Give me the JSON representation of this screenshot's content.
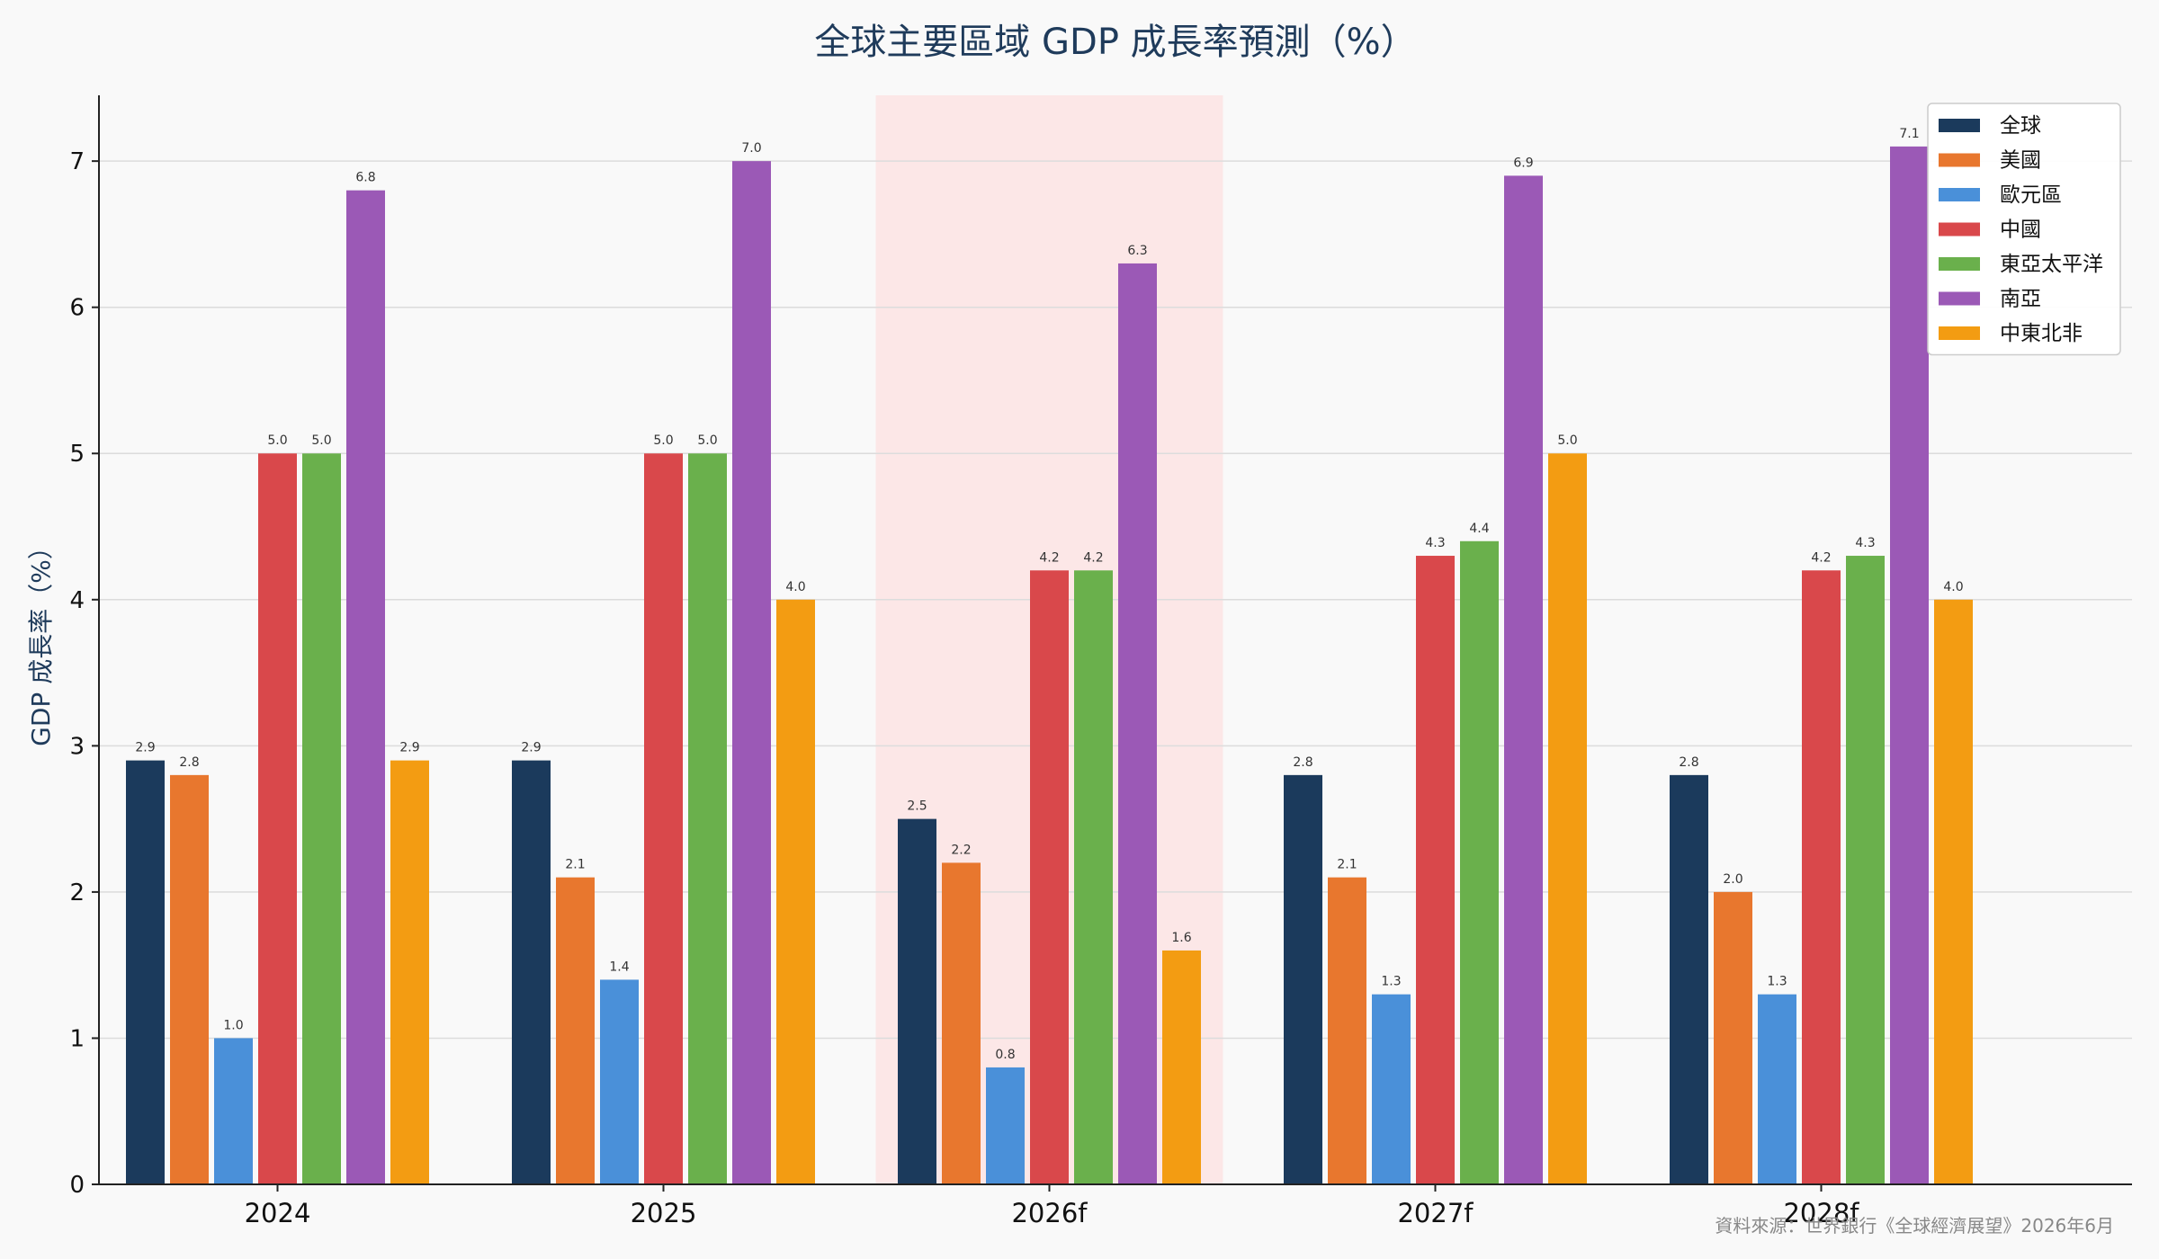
{
  "chart_data": {
    "type": "bar",
    "title": "全球主要區域 GDP 成長率預測（%）",
    "xlabel": "",
    "ylabel": "GDP 成長率（%）",
    "categories": [
      "2024",
      "2025",
      "2026f",
      "2027f",
      "2028f"
    ],
    "highlight_category": "2026f",
    "ylim": [
      0,
      7.45
    ],
    "yticks": [
      0,
      1,
      2,
      3,
      4,
      5,
      6,
      7
    ],
    "grid": "horizontal",
    "legend_position": "top-right",
    "series": [
      {
        "name": "全球",
        "color": "#1b3a5c",
        "values": [
          2.9,
          2.9,
          2.5,
          2.8,
          2.8
        ]
      },
      {
        "name": "美國",
        "color": "#e8772e",
        "values": [
          2.8,
          2.1,
          2.2,
          2.1,
          2.0
        ]
      },
      {
        "name": "歐元區",
        "color": "#4a90d9",
        "values": [
          1.0,
          1.4,
          0.8,
          1.3,
          1.3
        ]
      },
      {
        "name": "中國",
        "color": "#d9484b",
        "values": [
          5.0,
          5.0,
          4.2,
          4.3,
          4.2
        ]
      },
      {
        "name": "東亞太平洋",
        "color": "#6ab04c",
        "values": [
          5.0,
          5.0,
          4.2,
          4.4,
          4.3
        ]
      },
      {
        "name": "南亞",
        "color": "#9b59b6",
        "values": [
          6.8,
          7.0,
          6.3,
          6.9,
          7.1
        ]
      },
      {
        "name": "中東北非",
        "color": "#f39c12",
        "values": [
          2.9,
          4.0,
          1.6,
          5.0,
          4.0
        ]
      }
    ],
    "source": "資料來源：世界銀行《全球經濟展望》2026年6月"
  }
}
